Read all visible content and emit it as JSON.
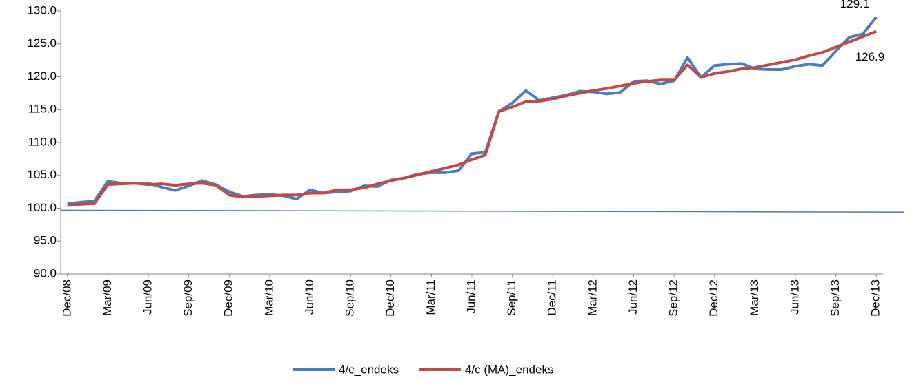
{
  "chart_data": {
    "type": "line",
    "categories": [
      "Dec/08",
      null,
      null,
      "Mar/09",
      null,
      null,
      "Jun/09",
      null,
      null,
      "Sep/09",
      null,
      null,
      "Dec/09",
      null,
      null,
      "Mar/10",
      null,
      null,
      "Jun/10",
      null,
      null,
      "Sep/10",
      null,
      null,
      "Dec/10",
      null,
      null,
      "Mar/11",
      null,
      null,
      "Jun/11",
      null,
      null,
      "Sep/11",
      null,
      null,
      "Dec/11",
      null,
      null,
      "Mar/12",
      null,
      null,
      "Jun/12",
      null,
      null,
      "Sep/12",
      null,
      null,
      "Dec/12",
      null,
      null,
      "Mar/13",
      null,
      null,
      "Jun/13",
      null,
      null,
      "Sep/13",
      null,
      null,
      "Dec/13"
    ],
    "series": [
      {
        "name": "4/c_endeks",
        "color": "#4a7ebb",
        "values": [
          100.7,
          100.9,
          101.1,
          104.1,
          103.8,
          103.8,
          103.8,
          103.2,
          102.7,
          103.4,
          104.2,
          103.6,
          102.5,
          101.8,
          102.0,
          102.1,
          101.9,
          101.4,
          102.8,
          102.3,
          102.5,
          102.6,
          103.4,
          103.3,
          104.3,
          104.6,
          105.2,
          105.4,
          105.4,
          105.7,
          108.3,
          108.5,
          114.7,
          116.0,
          117.9,
          116.4,
          116.8,
          117.2,
          117.8,
          117.7,
          117.4,
          117.6,
          119.3,
          119.4,
          118.9,
          119.4,
          122.9,
          119.9,
          121.7,
          121.9,
          122.0,
          121.2,
          121.1,
          121.1,
          121.6,
          121.9,
          121.7,
          123.9,
          126.0,
          126.5,
          129.1
        ]
      },
      {
        "name": "4/c (MA)_endeks",
        "color": "#be4b48",
        "values": [
          100.4,
          100.6,
          100.7,
          103.6,
          103.7,
          103.8,
          103.6,
          103.7,
          103.5,
          103.7,
          103.8,
          103.5,
          102.0,
          101.7,
          101.8,
          101.9,
          102.0,
          102.0,
          102.3,
          102.3,
          102.8,
          102.8,
          103.1,
          103.7,
          104.2,
          104.6,
          105.1,
          105.6,
          106.1,
          106.6,
          107.4,
          108.1,
          114.7,
          115.4,
          116.2,
          116.3,
          116.6,
          117.1,
          117.5,
          117.9,
          118.2,
          118.6,
          119.0,
          119.3,
          119.5,
          119.5,
          121.8,
          119.9,
          120.5,
          120.8,
          121.2,
          121.4,
          121.8,
          122.2,
          122.6,
          123.2,
          123.7,
          124.5,
          125.3,
          126.1,
          126.9
        ]
      }
    ],
    "reference_line": {
      "color": "#4a7ebb",
      "start": 99.7,
      "end": 99.4
    },
    "ylim": [
      90,
      130
    ],
    "yticks": [
      {
        "value": 90,
        "label": "90.0"
      },
      {
        "value": 95,
        "label": "95.0"
      },
      {
        "value": 100,
        "label": "100.0"
      },
      {
        "value": 105,
        "label": "105.0"
      },
      {
        "value": 110,
        "label": "110.0"
      },
      {
        "value": 115,
        "label": "115.0"
      },
      {
        "value": 120,
        "label": "120.0"
      },
      {
        "value": 125,
        "label": "125.0"
      },
      {
        "value": 130,
        "label": "130.0"
      }
    ],
    "grid": false,
    "legend": "bottom"
  }
}
